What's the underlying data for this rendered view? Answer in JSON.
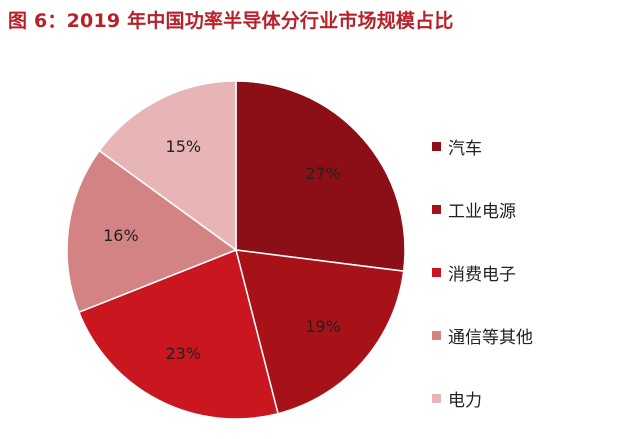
{
  "chart_data": {
    "type": "pie",
    "title": "图 6：2019 年中国功率半导体分行业市场规模占比",
    "categories": [
      "汽车",
      "工业电源",
      "消费电子",
      "通信等其他",
      "电力"
    ],
    "values": [
      27,
      19,
      23,
      16,
      15
    ],
    "labels": [
      "27%",
      "19%",
      "23%",
      "16%",
      "15%"
    ],
    "colors": [
      "#8c0f17",
      "#a71219",
      "#c9161f",
      "#d48385",
      "#e8b5b6"
    ],
    "legend": "right",
    "start": "12 o'clock",
    "direction": "clockwise"
  }
}
